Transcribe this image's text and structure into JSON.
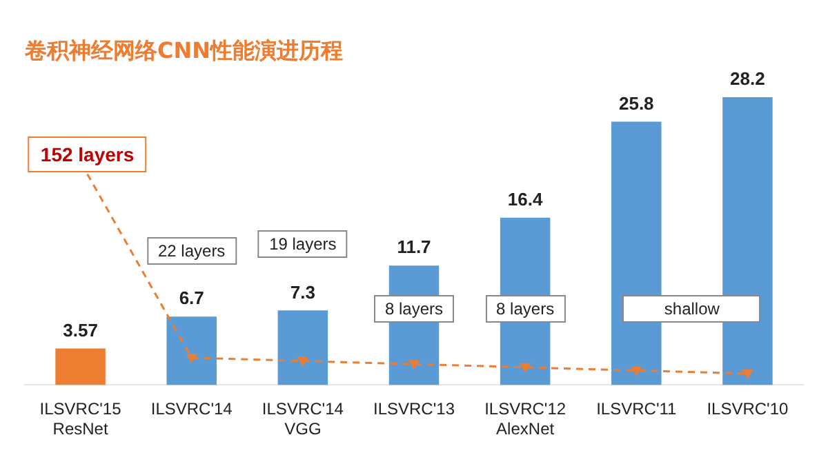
{
  "chart_data": {
    "type": "bar",
    "title": "卷积神经网络CNN性能演进历程",
    "categories": [
      "ILSVRC'15 ResNet",
      "ILSVRC'14",
      "ILSVRC'14 VGG",
      "ILSVRC'13",
      "ILSVRC'12 AlexNet",
      "ILSVRC'11",
      "ILSVRC'10"
    ],
    "values": [
      3.57,
      6.7,
      7.3,
      11.7,
      16.4,
      25.8,
      28.2
    ],
    "colors": [
      "#ed7d31",
      "#5b9bd5",
      "#5b9bd5",
      "#5b9bd5",
      "#5b9bd5",
      "#5b9bd5",
      "#5b9bd5"
    ],
    "data_labels": true,
    "tick_labels": "x",
    "grid": false,
    "legend": false,
    "annotations": [
      "152 layers",
      "22 layers",
      "19 layers",
      "8 layers",
      "8 layers",
      "shallow"
    ]
  }
}
